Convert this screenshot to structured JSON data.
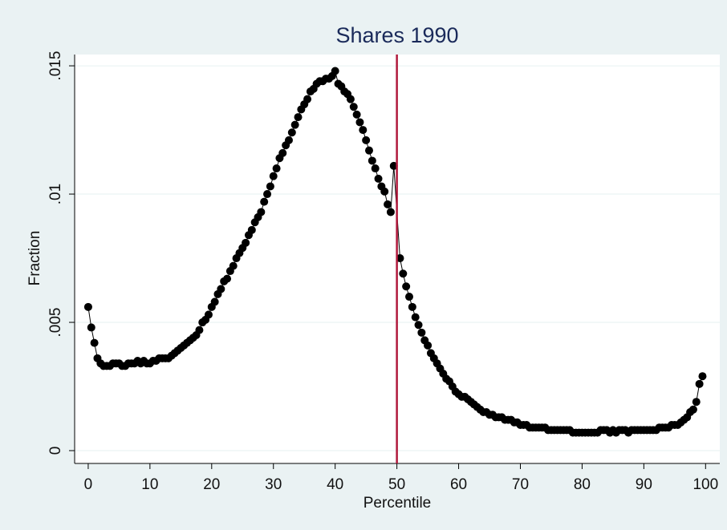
{
  "chart_data": {
    "type": "scatter-line",
    "title": "Shares 1990",
    "x_label": "Percentile",
    "y_label": "Fraction",
    "x": [
      0,
      0.5,
      1,
      1.5,
      2,
      2.5,
      3,
      3.5,
      4,
      4.5,
      5,
      5.5,
      6,
      6.5,
      7,
      7.5,
      8,
      8.5,
      9,
      9.5,
      10,
      10.5,
      11,
      11.5,
      12,
      12.5,
      13,
      13.5,
      14,
      14.5,
      15,
      15.5,
      16,
      16.5,
      17,
      17.5,
      18,
      18.5,
      19,
      19.5,
      20,
      20.5,
      21,
      21.5,
      22,
      22.5,
      23,
      23.5,
      24,
      24.5,
      25,
      25.5,
      26,
      26.5,
      27,
      27.5,
      28,
      28.5,
      29,
      29.5,
      30,
      30.5,
      31,
      31.5,
      32,
      32.5,
      33,
      33.5,
      34,
      34.5,
      35,
      35.5,
      36,
      36.5,
      37,
      37.5,
      38,
      38.5,
      39,
      39.5,
      40,
      40.5,
      41,
      41.5,
      42,
      42.5,
      43,
      43.5,
      44,
      44.5,
      45,
      45.5,
      46,
      46.5,
      47,
      47.5,
      48,
      48.5,
      49,
      49.5,
      50.5,
      51,
      51.5,
      52,
      52.5,
      53,
      53.5,
      54,
      54.5,
      55,
      55.5,
      56,
      56.5,
      57,
      57.5,
      58,
      58.5,
      59,
      59.5,
      60,
      60.5,
      61,
      61.5,
      62,
      62.5,
      63,
      63.5,
      64,
      64.5,
      65,
      65.5,
      66,
      66.5,
      67,
      67.5,
      68,
      68.5,
      69,
      69.5,
      70,
      70.5,
      71,
      71.5,
      72,
      72.5,
      73,
      73.5,
      74,
      74.5,
      75,
      75.5,
      76,
      76.5,
      77,
      77.5,
      78,
      78.5,
      79,
      79.5,
      80,
      80.5,
      81,
      81.5,
      82,
      82.5,
      83,
      83.5,
      84,
      84.5,
      85,
      85.5,
      86,
      86.5,
      87,
      87.5,
      88,
      88.5,
      89,
      89.5,
      90,
      90.5,
      91,
      91.5,
      92,
      92.5,
      93,
      93.5,
      94,
      94.5,
      95,
      95.5,
      96,
      96.5,
      97,
      97.5,
      98,
      98.5,
      99,
      99.5
    ],
    "values": [
      0.0056,
      0.0048,
      0.0042,
      0.0036,
      0.0034,
      0.0033,
      0.0033,
      0.0033,
      0.0034,
      0.0034,
      0.0034,
      0.0033,
      0.0033,
      0.0034,
      0.0034,
      0.0034,
      0.0035,
      0.0034,
      0.0035,
      0.0034,
      0.0034,
      0.0035,
      0.0035,
      0.0036,
      0.0036,
      0.0036,
      0.0036,
      0.0037,
      0.0038,
      0.0039,
      0.004,
      0.0041,
      0.0042,
      0.0043,
      0.0044,
      0.0045,
      0.0047,
      0.005,
      0.0051,
      0.0053,
      0.0056,
      0.0058,
      0.0061,
      0.0063,
      0.0066,
      0.0067,
      0.007,
      0.0072,
      0.0075,
      0.0077,
      0.0079,
      0.0081,
      0.0084,
      0.0086,
      0.0089,
      0.0091,
      0.0093,
      0.0097,
      0.01,
      0.0103,
      0.0107,
      0.011,
      0.0114,
      0.0116,
      0.0119,
      0.0121,
      0.0124,
      0.0127,
      0.013,
      0.0133,
      0.0135,
      0.0137,
      0.014,
      0.0141,
      0.0143,
      0.0144,
      0.0144,
      0.0145,
      0.0145,
      0.0146,
      0.0148,
      0.0143,
      0.0142,
      0.014,
      0.0139,
      0.0137,
      0.0134,
      0.0131,
      0.0128,
      0.0125,
      0.0121,
      0.0117,
      0.0113,
      0.011,
      0.0106,
      0.0103,
      0.0101,
      0.0096,
      0.0093,
      0.0111,
      0.0075,
      0.0069,
      0.0064,
      0.006,
      0.0056,
      0.0052,
      0.0049,
      0.0046,
      0.0043,
      0.0041,
      0.0038,
      0.0036,
      0.0034,
      0.0032,
      0.003,
      0.0028,
      0.0027,
      0.0025,
      0.0023,
      0.0022,
      0.0021,
      0.0021,
      0.002,
      0.0019,
      0.0018,
      0.0017,
      0.0016,
      0.0015,
      0.0015,
      0.0014,
      0.0014,
      0.0013,
      0.0013,
      0.0013,
      0.0012,
      0.0012,
      0.0012,
      0.0011,
      0.0011,
      0.001,
      0.001,
      0.001,
      0.0009,
      0.0009,
      0.0009,
      0.0009,
      0.0009,
      0.0009,
      0.0008,
      0.0008,
      0.0008,
      0.0008,
      0.0008,
      0.0008,
      0.0008,
      0.0008,
      0.0007,
      0.0007,
      0.0007,
      0.0007,
      0.0007,
      0.0007,
      0.0007,
      0.0007,
      0.0007,
      0.0008,
      0.0008,
      0.0008,
      0.0007,
      0.0008,
      0.0007,
      0.0008,
      0.0008,
      0.0008,
      0.0007,
      0.0008,
      0.0008,
      0.0008,
      0.0008,
      0.0008,
      0.0008,
      0.0008,
      0.0008,
      0.0008,
      0.0009,
      0.0009,
      0.0009,
      0.0009,
      0.001,
      0.001,
      0.001,
      0.0011,
      0.0012,
      0.0013,
      0.0015,
      0.0016,
      0.0019,
      0.0026,
      0.0029
    ],
    "color": "#000000",
    "reference_line": {
      "x": 50,
      "color": "#b0193c"
    },
    "xlim": [
      -2.2,
      102.3
    ],
    "ylim": [
      -0.0005,
      0.01544
    ],
    "xticks": [
      0,
      10,
      20,
      30,
      40,
      50,
      60,
      70,
      80,
      90,
      100
    ],
    "yticks": [
      0,
      {
        "value": 0.005,
        "label": ".005"
      },
      {
        "value": 0.01,
        "label": ".01"
      },
      {
        "value": 0.015,
        "label": ".015"
      }
    ],
    "grid": true
  }
}
